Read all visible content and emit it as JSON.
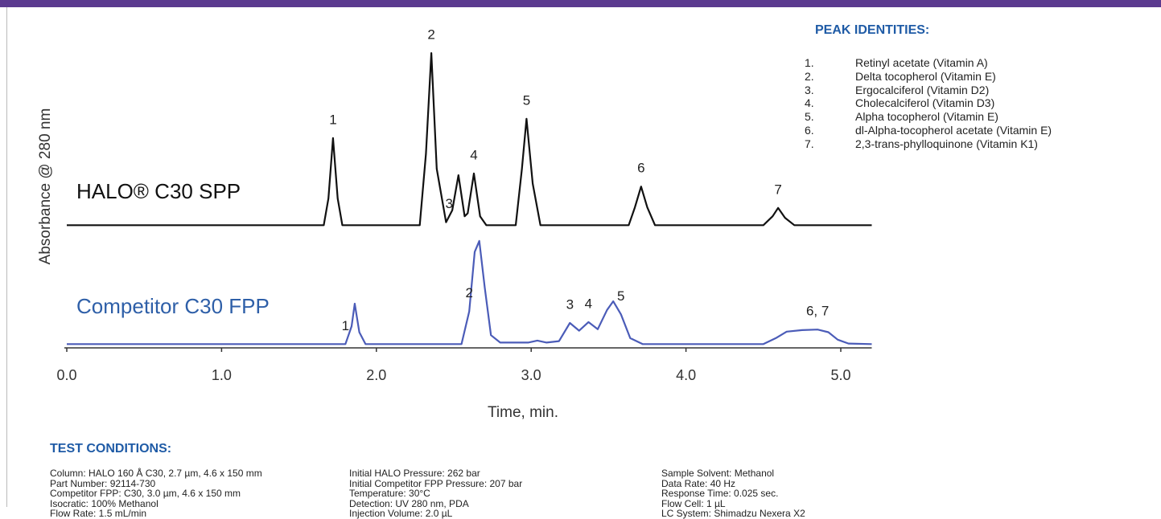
{
  "chart_data": {
    "type": "line",
    "y_label": "Absorbance @ 280 nm",
    "x_label": "Time, min.",
    "xlim": [
      0,
      5.2
    ],
    "xticks": [
      {
        "value": 0,
        "label": "0.0"
      },
      {
        "value": 1,
        "label": "1.0"
      },
      {
        "value": 2,
        "label": "2.0"
      },
      {
        "value": 3,
        "label": "3.0"
      },
      {
        "value": 4,
        "label": "4.0"
      },
      {
        "value": 5,
        "label": "5.0"
      }
    ],
    "ylim": [
      0,
      100
    ],
    "series": [
      {
        "name": "HALO® C30 SPP",
        "color": "#111111",
        "x": [
          0.0,
          1.66,
          1.69,
          1.72,
          1.75,
          1.78,
          2.28,
          2.32,
          2.355,
          2.39,
          2.45,
          2.49,
          2.53,
          2.57,
          2.59,
          2.63,
          2.67,
          2.71,
          2.9,
          2.94,
          2.97,
          3.01,
          3.06,
          3.63,
          3.67,
          3.71,
          3.75,
          3.8,
          4.5,
          4.56,
          4.595,
          4.64,
          4.7,
          5.2
        ],
        "values": [
          41,
          41,
          50,
          70.3,
          50,
          41,
          41,
          65,
          98.9,
          60,
          42,
          46,
          57.8,
          44,
          45,
          58.4,
          44,
          41,
          41,
          60,
          76.8,
          55,
          41,
          41,
          47,
          54,
          47,
          41,
          41,
          44,
          46.8,
          43.5,
          41,
          41
        ],
        "peak_labels": [
          {
            "label": "1",
            "x": 1.72
          },
          {
            "label": "2",
            "x": 2.355
          },
          {
            "label": "3",
            "x": 2.47
          },
          {
            "label": "4",
            "x": 2.63
          },
          {
            "label": "5",
            "x": 2.97
          },
          {
            "label": "6",
            "x": 3.71
          },
          {
            "label": "7",
            "x": 4.595
          }
        ]
      },
      {
        "name": "Competitor C30 FPP",
        "color": "#4b5cb8",
        "x": [
          0.0,
          1.8,
          1.84,
          1.86,
          1.89,
          1.93,
          2.55,
          2.6,
          2.635,
          2.665,
          2.7,
          2.74,
          2.8,
          2.98,
          3.04,
          3.1,
          3.18,
          3.25,
          3.31,
          3.37,
          3.43,
          3.49,
          3.53,
          3.58,
          3.64,
          3.72,
          4.5,
          4.58,
          4.65,
          4.75,
          4.85,
          4.92,
          4.98,
          5.05,
          5.2
        ],
        "values": [
          1,
          1,
          7,
          14.6,
          5,
          1,
          1,
          12,
          32,
          35.7,
          20,
          4,
          1.5,
          1.5,
          2.2,
          1.5,
          2,
          8.1,
          5.5,
          8.4,
          6,
          12.5,
          15.4,
          11,
          3,
          1,
          1,
          3,
          5.2,
          5.7,
          5.9,
          5,
          2.5,
          1.2,
          1
        ],
        "peak_labels": [
          {
            "label": "1",
            "x": 1.8
          },
          {
            "label": "2",
            "x": 2.6
          },
          {
            "label": "3",
            "x": 3.25
          },
          {
            "label": "4",
            "x": 3.37
          },
          {
            "label": "5",
            "x": 3.58
          },
          {
            "label": "6, 7",
            "x": 4.85
          }
        ]
      }
    ]
  },
  "peak_identities": {
    "title": "PEAK IDENTITIES:",
    "items": [
      {
        "number": "1.",
        "name": "Retinyl acetate (Vitamin A)"
      },
      {
        "number": "2.",
        "name": "Delta tocopherol (Vitamin E)"
      },
      {
        "number": "3.",
        "name": "Ergocalciferol (Vitamin D2)"
      },
      {
        "number": "4.",
        "name": "Cholecalciferol (Vitamin D3)"
      },
      {
        "number": "5.",
        "name": "Alpha tocopherol (Vitamin E)"
      },
      {
        "number": "6.",
        "name": "dl-Alpha-tocopherol acetate (Vitamin E)"
      },
      {
        "number": "7.",
        "name": "2,3-trans-phylloquinone (Vitamin K1)"
      }
    ]
  },
  "test_conditions": {
    "title": "TEST CONDITIONS:",
    "columns": [
      [
        "Column: HALO 160 Å C30, 2.7 µm, 4.6 x 150 mm",
        "Part Number:  92114-730",
        "Competitor FPP: C30, 3.0 µm, 4.6 x 150 mm",
        "Isocratic:  100% Methanol",
        "Flow Rate:  1.5 mL/min"
      ],
      [
        "Initial HALO Pressure:  262 bar",
        "Initial Competitor FPP Pressure:   207 bar",
        "Temperature:  30°C",
        "Detection:  UV 280 nm, PDA",
        "Injection Volume:  2.0 µL"
      ],
      [
        "Sample Solvent:  Methanol",
        "Data Rate:  40 Hz",
        "Response Time:  0.025 sec.",
        "Flow Cell:  1 µL",
        "LC System:  Shimadzu Nexera X2"
      ]
    ]
  }
}
